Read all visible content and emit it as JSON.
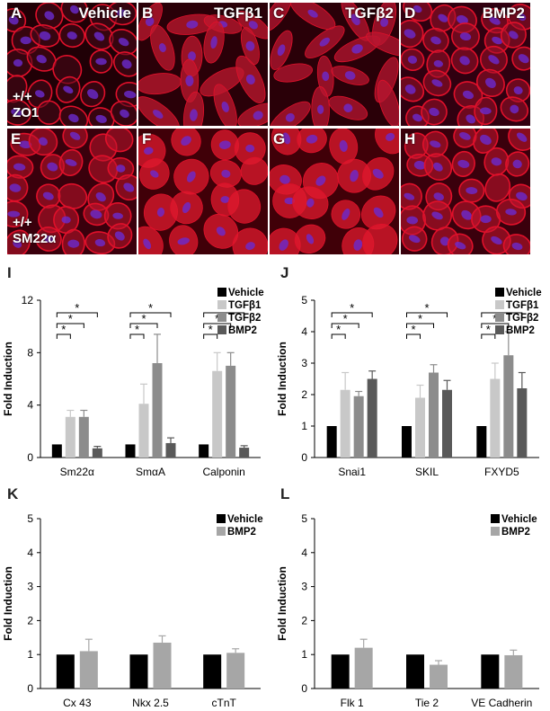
{
  "micrographs": [
    {
      "label": "A",
      "treatment": "Vehicle",
      "genotype": "+/+",
      "stain": "ZO1"
    },
    {
      "label": "B",
      "treatment": "TGFβ1"
    },
    {
      "label": "C",
      "treatment": "TGFβ2"
    },
    {
      "label": "D",
      "treatment": "BMP2"
    },
    {
      "label": "E",
      "genotype": "+/+",
      "stain": "SM22α"
    },
    {
      "label": "F"
    },
    {
      "label": "G"
    },
    {
      "label": "H"
    }
  ],
  "colors": {
    "vehicle": "#000000",
    "tgfb1": "#c8c8c8",
    "tgfb2": "#8c8c8c",
    "bmp2": "#595959",
    "bmp2_light": "#a6a6a6",
    "stain_red": "#e0102a",
    "nucleus": "#6a2bd0"
  },
  "chart_data": [
    {
      "panel": "I",
      "type": "bar",
      "categories": [
        "Sm22α",
        "SmαA",
        "Calponin"
      ],
      "series": [
        {
          "name": "Vehicle",
          "values": [
            1,
            1,
            1
          ],
          "errors": [
            0,
            0,
            0
          ]
        },
        {
          "name": "TGFβ1",
          "values": [
            3.1,
            4.1,
            6.6
          ],
          "errors": [
            0.5,
            1.5,
            1.4
          ]
        },
        {
          "name": "TGFβ2",
          "values": [
            3.1,
            7.2,
            7.0
          ],
          "errors": [
            0.5,
            2.2,
            1.0
          ]
        },
        {
          "name": "BMP2",
          "values": [
            0.7,
            1.1,
            0.75
          ],
          "errors": [
            0.15,
            0.4,
            0.15
          ]
        }
      ],
      "ylabel": "Fold Induction",
      "ylim": [
        0,
        12
      ],
      "yticks": [
        "0",
        "4",
        "8",
        "12"
      ],
      "significance": "*",
      "legend": "right"
    },
    {
      "panel": "J",
      "type": "bar",
      "categories": [
        "Snai1",
        "SKIL",
        "FXYD5"
      ],
      "series": [
        {
          "name": "Vehicle",
          "values": [
            1,
            1,
            1
          ],
          "errors": [
            0,
            0,
            0
          ]
        },
        {
          "name": "TGFβ1",
          "values": [
            2.15,
            1.9,
            2.5
          ],
          "errors": [
            0.55,
            0.4,
            0.5
          ]
        },
        {
          "name": "TGFβ2",
          "values": [
            1.95,
            2.7,
            3.25
          ],
          "errors": [
            0.15,
            0.25,
            0.75
          ]
        },
        {
          "name": "BMP2",
          "values": [
            2.5,
            2.15,
            2.2
          ],
          "errors": [
            0.25,
            0.3,
            0.5
          ]
        }
      ],
      "ylabel": "Fold Induction",
      "ylim": [
        0,
        5
      ],
      "yticks": [
        "0",
        "1",
        "2",
        "3",
        "4",
        "5"
      ],
      "significance": "*",
      "legend": "right"
    },
    {
      "panel": "K",
      "type": "bar",
      "categories": [
        "Cx 43",
        "Nkx 2.5",
        "cTnT"
      ],
      "series": [
        {
          "name": "Vehicle",
          "values": [
            1,
            1,
            1
          ],
          "errors": [
            0,
            0,
            0
          ]
        },
        {
          "name": "BMP2",
          "values": [
            1.1,
            1.35,
            1.05
          ],
          "errors": [
            0.35,
            0.2,
            0.12
          ]
        }
      ],
      "ylabel": "Fold Induction",
      "ylim": [
        0,
        5
      ],
      "yticks": [
        "0",
        "1",
        "2",
        "3",
        "4",
        "5"
      ],
      "legend": "top-right"
    },
    {
      "panel": "L",
      "type": "bar",
      "categories": [
        "Flk 1",
        "Tie 2",
        "VE Cadherin"
      ],
      "series": [
        {
          "name": "Vehicle",
          "values": [
            1,
            1,
            1
          ],
          "errors": [
            0,
            0,
            0
          ]
        },
        {
          "name": "BMP2",
          "values": [
            1.2,
            0.7,
            0.98
          ],
          "errors": [
            0.25,
            0.12,
            0.15
          ]
        }
      ],
      "ylabel": "Fold Induction",
      "ylim": [
        0,
        5
      ],
      "yticks": [
        "0",
        "1",
        "2",
        "3",
        "4",
        "5"
      ],
      "legend": "top-right"
    }
  ]
}
